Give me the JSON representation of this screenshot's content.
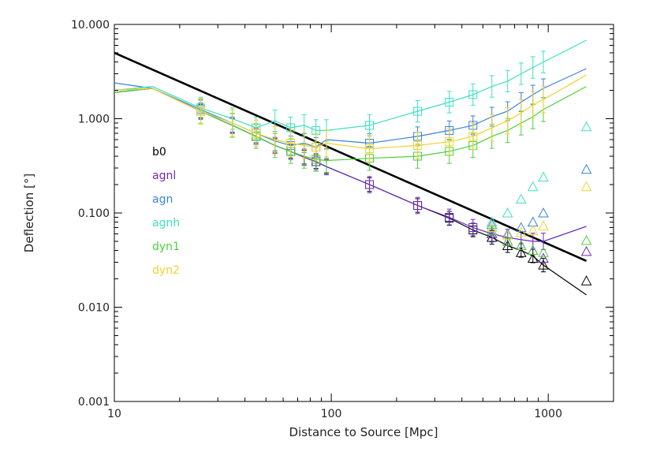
{
  "chart_data": {
    "type": "line",
    "title": "",
    "xlabel": "Distance to Source [Mpc]",
    "ylabel": "Deflection [°]",
    "x_scale": "log",
    "y_scale": "log",
    "xlim": [
      10,
      2000
    ],
    "ylim": [
      0.001,
      10
    ],
    "grid": false,
    "legend_position": "middle-left",
    "x_ticks": [
      {
        "value": 10,
        "label": "10"
      },
      {
        "value": 100,
        "label": "100"
      },
      {
        "value": 1000,
        "label": "1000"
      }
    ],
    "y_ticks": [
      {
        "value": 0.001,
        "label": "0.001"
      },
      {
        "value": 0.01,
        "label": "0.010"
      },
      {
        "value": 0.1,
        "label": "0.100"
      },
      {
        "value": 1,
        "label": "1.000"
      },
      {
        "value": 10,
        "label": "10.000"
      }
    ],
    "reference_line": {
      "color": "#000000",
      "points": [
        [
          10,
          5.0
        ],
        [
          1500,
          0.031
        ]
      ]
    },
    "series": [
      {
        "name": "b0",
        "color": "#000000",
        "x": [
          10,
          15,
          25,
          35,
          45,
          55,
          65,
          75,
          85,
          95,
          150,
          250,
          350,
          450,
          550,
          650,
          750,
          850,
          950,
          1500
        ],
        "y": [
          1.9,
          2.1,
          1.2,
          0.85,
          0.65,
          0.52,
          0.45,
          0.39,
          0.35,
          0.31,
          0.2,
          0.12,
          0.088,
          0.066,
          0.055,
          0.045,
          0.04,
          0.035,
          0.028,
          0.0135
        ],
        "markers_x": [
          550,
          650,
          750,
          850,
          950,
          1500
        ],
        "markers_y": [
          0.055,
          0.045,
          0.038,
          0.033,
          0.028,
          0.019
        ]
      },
      {
        "name": "agnl",
        "color": "#6a2bbd",
        "x": [
          10,
          15,
          25,
          35,
          45,
          55,
          65,
          75,
          85,
          95,
          150,
          250,
          350,
          450,
          550,
          650,
          750,
          850,
          950,
          1500
        ],
        "y": [
          1.9,
          2.1,
          1.2,
          0.85,
          0.65,
          0.52,
          0.45,
          0.39,
          0.35,
          0.31,
          0.2,
          0.12,
          0.09,
          0.07,
          0.06,
          0.055,
          0.052,
          0.05,
          0.05,
          0.072
        ],
        "markers_x": [
          550,
          650,
          750,
          850,
          950,
          1500
        ],
        "markers_y": [
          0.06,
          0.05,
          0.045,
          0.04,
          0.033,
          0.039
        ]
      },
      {
        "name": "agn",
        "color": "#3b82d6",
        "x": [
          10,
          15,
          25,
          35,
          45,
          55,
          65,
          75,
          85,
          95,
          150,
          250,
          350,
          450,
          550,
          650,
          750,
          850,
          950,
          1500
        ],
        "y": [
          2.4,
          2.1,
          1.25,
          0.9,
          0.7,
          0.58,
          0.52,
          0.55,
          0.5,
          0.6,
          0.55,
          0.65,
          0.75,
          0.85,
          1.05,
          1.2,
          1.5,
          1.8,
          2.1,
          3.4
        ],
        "markers_x": [
          550,
          650,
          750,
          850,
          950,
          1500
        ],
        "markers_y": [
          0.075,
          0.06,
          0.07,
          0.08,
          0.1,
          0.29
        ]
      },
      {
        "name": "agnh",
        "color": "#3ee0c0",
        "x": [
          10,
          15,
          25,
          35,
          45,
          55,
          65,
          75,
          85,
          95,
          150,
          250,
          350,
          450,
          550,
          650,
          750,
          850,
          950,
          1500
        ],
        "y": [
          2.0,
          2.2,
          1.3,
          1.0,
          0.8,
          0.95,
          0.8,
          0.85,
          0.75,
          0.75,
          0.85,
          1.2,
          1.5,
          1.8,
          2.2,
          2.5,
          3.0,
          3.5,
          4.0,
          6.8
        ],
        "markers_x": [
          550,
          650,
          750,
          850,
          950,
          1500
        ],
        "markers_y": [
          0.08,
          0.1,
          0.14,
          0.19,
          0.24,
          0.82
        ]
      },
      {
        "name": "dyn1",
        "color": "#4cd13a",
        "x": [
          10,
          15,
          25,
          35,
          45,
          55,
          65,
          75,
          85,
          95,
          150,
          250,
          350,
          450,
          550,
          650,
          750,
          850,
          950,
          1500
        ],
        "y": [
          1.9,
          2.1,
          1.2,
          0.85,
          0.65,
          0.52,
          0.45,
          0.4,
          0.37,
          0.36,
          0.38,
          0.4,
          0.45,
          0.52,
          0.65,
          0.75,
          0.9,
          1.05,
          1.25,
          2.2
        ],
        "markers_x": [
          550,
          650,
          750,
          850,
          950,
          1500
        ],
        "markers_y": [
          0.065,
          0.05,
          0.045,
          0.04,
          0.038,
          0.051
        ]
      },
      {
        "name": "dyn2",
        "color": "#f2d22e",
        "x": [
          10,
          15,
          25,
          35,
          45,
          55,
          65,
          75,
          85,
          95,
          150,
          250,
          350,
          450,
          550,
          650,
          750,
          850,
          950,
          1500
        ],
        "y": [
          2.0,
          2.1,
          1.2,
          0.9,
          0.7,
          0.6,
          0.55,
          0.52,
          0.5,
          0.55,
          0.48,
          0.52,
          0.57,
          0.65,
          0.8,
          0.95,
          1.15,
          1.4,
          1.6,
          2.9
        ],
        "markers_x": [
          550,
          650,
          750,
          850,
          950,
          1500
        ],
        "markers_y": [
          0.07,
          0.058,
          0.062,
          0.065,
          0.073,
          0.19
        ]
      }
    ]
  }
}
